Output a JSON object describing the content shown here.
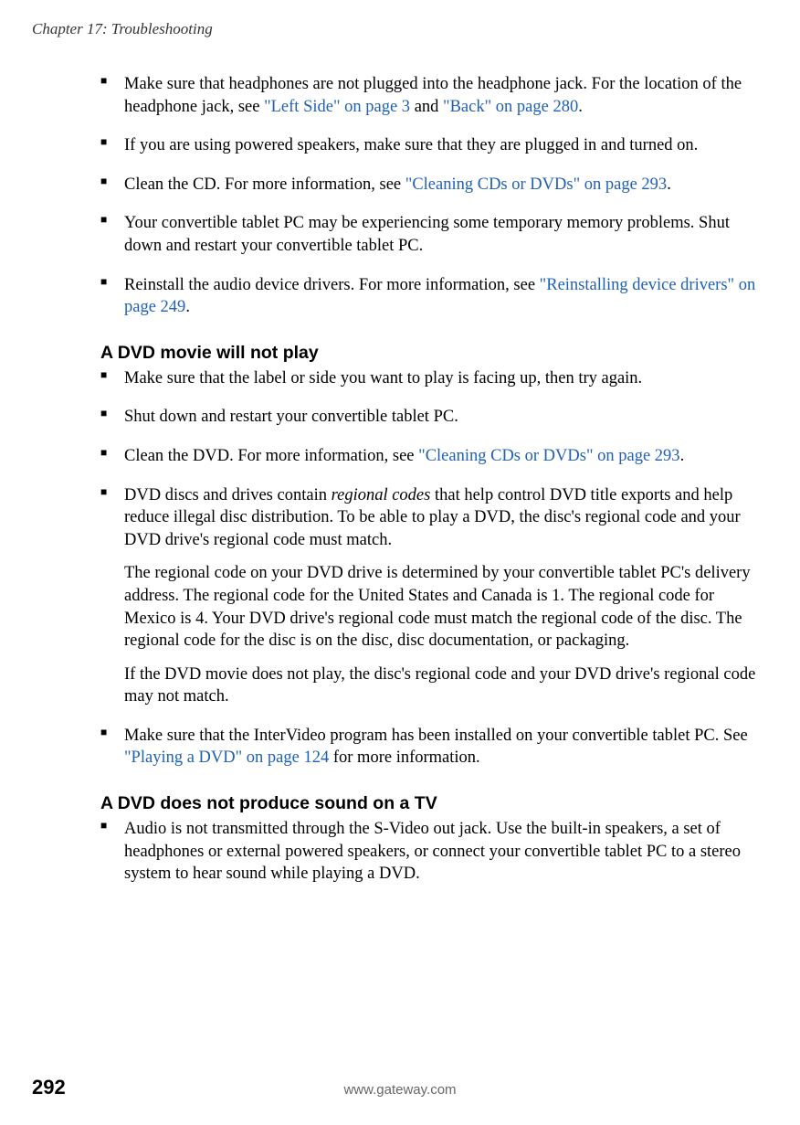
{
  "header": {
    "chapter": "Chapter 17: Troubleshooting"
  },
  "section1": {
    "items": [
      {
        "pre": "Make sure that headphones are not plugged into the headphone jack. For the location of the headphone jack, see ",
        "link1": "\"Left Side\" on page 3",
        "mid": " and ",
        "link2": "\"Back\" on page 280",
        "post": "."
      },
      {
        "text": "If you are using powered speakers, make sure that they are plugged in and turned on."
      },
      {
        "pre": "Clean the CD. For more information, see ",
        "link1": "\"Cleaning CDs or DVDs\" on page 293",
        "post": "."
      },
      {
        "text": "Your convertible tablet PC may be experiencing some temporary memory problems. Shut down and restart your convertible tablet PC."
      },
      {
        "pre": "Reinstall the audio device drivers. For more information, see ",
        "link1": "\"Reinstalling device drivers\" on page 249",
        "post": "."
      }
    ]
  },
  "section2": {
    "heading": "A DVD movie will not play",
    "items": [
      {
        "text": "Make sure that the label or side you want to play is facing up, then try again."
      },
      {
        "text": "Shut down and restart your convertible tablet PC."
      },
      {
        "pre": "Clean the DVD. For more information, see ",
        "link1": "\"Cleaning CDs or DVDs\" on page 293",
        "post": "."
      },
      {
        "pre": "DVD discs and drives contain ",
        "italic": "regional codes",
        "post": " that help control DVD title exports and help reduce illegal disc distribution. To be able to play a DVD, the disc's regional code and your DVD drive's regional code must match.",
        "para2": "The regional code on your DVD drive is determined by your convertible tablet PC's delivery address. The regional code for the United States and Canada is 1. The regional code for Mexico is 4. Your DVD drive's regional code must match the regional code of the disc. The regional code for the disc is on the disc, disc documentation, or packaging.",
        "para3": "If the DVD movie does not play, the disc's regional code and your DVD drive's regional code may not match."
      },
      {
        "pre": "Make sure that the InterVideo program has been installed on your convertible tablet PC. See ",
        "link1": "\"Playing a DVD\" on page 124",
        "post": " for more information."
      }
    ]
  },
  "section3": {
    "heading": "A DVD does not produce sound on a TV",
    "items": [
      {
        "text": "Audio is not transmitted through the S-Video out jack. Use the built-in speakers, a set of headphones or external powered speakers, or connect your convertible tablet PC to a stereo system to hear sound while playing a DVD."
      }
    ]
  },
  "footer": {
    "page": "292",
    "url": "www.gateway.com"
  }
}
